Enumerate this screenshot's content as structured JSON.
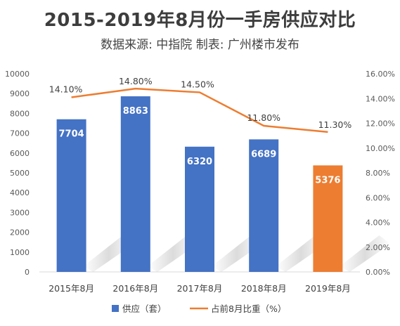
{
  "page": {
    "title": "2015-2019年8月份一手房供应对比",
    "subtitle": "数据来源: 中指院   制表: 广州楼市发布"
  },
  "colors": {
    "bar": "#4472c4",
    "bar_highlight": "#ed7d31",
    "line": "#ed7d31",
    "axis": "#d9d9d9"
  },
  "chart_data": {
    "type": "bar",
    "categories": [
      "2015年8月",
      "2016年8月",
      "2017年8月",
      "2018年8月",
      "2019年8月"
    ],
    "series": [
      {
        "name": "供应（套）",
        "type": "bar",
        "axis": "left",
        "values": [
          7704,
          8863,
          6320,
          6689,
          5376
        ],
        "labels": [
          "7704",
          "8863",
          "6320",
          "6689",
          "5376"
        ],
        "highlight_index": 4
      },
      {
        "name": "占前8月比重（%）",
        "type": "line",
        "axis": "right",
        "values": [
          14.1,
          14.8,
          14.5,
          11.8,
          11.3
        ],
        "labels": [
          "14.10%",
          "14.80%",
          "14.50%",
          "11.80%",
          "11.30%"
        ]
      }
    ],
    "y_left": {
      "lim": [
        0,
        10000
      ],
      "ticks": [
        "0",
        "1000",
        "2000",
        "3000",
        "4000",
        "5000",
        "6000",
        "7000",
        "8000",
        "9000",
        "10000"
      ]
    },
    "y_right": {
      "lim": [
        0,
        16
      ],
      "ticks": [
        "0.00%",
        "2.00%",
        "4.00%",
        "6.00%",
        "8.00%",
        "10.00%",
        "12.00%",
        "14.00%",
        "16.00%"
      ]
    },
    "legend_position": "bottom",
    "grid": false
  }
}
